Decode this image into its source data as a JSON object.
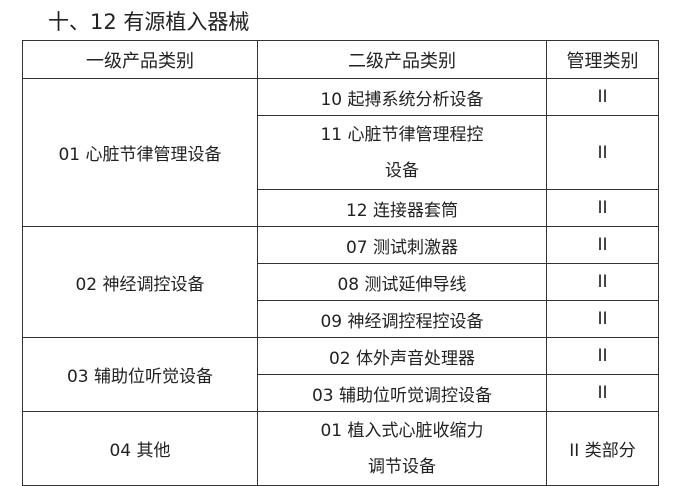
{
  "title": "十、12 有源植入器械",
  "headers": [
    "一级产品类别",
    "二级产品类别",
    "管理类别"
  ],
  "groups": [
    {
      "name": "01 心脏节律管理设备",
      "items": [
        {
          "name": "10 起搏系统分析设备",
          "class": "II"
        },
        {
          "name": "11 心脏节律管理程控设备",
          "class": "II"
        },
        {
          "name": "12 连接器套筒",
          "class": "II"
        }
      ]
    },
    {
      "name": "02 神经调控设备",
      "items": [
        {
          "name": "07 测试刺激器",
          "class": "II"
        },
        {
          "name": "08 测试延伸导线",
          "class": "II"
        },
        {
          "name": "09 神经调控程控设备",
          "class": "II"
        }
      ]
    },
    {
      "name": "03 辅助位听觉设备",
      "items": [
        {
          "name": "02 体外声音处理器",
          "class": "II"
        },
        {
          "name": "03 辅助位听觉调控设备",
          "class": "II"
        }
      ]
    },
    {
      "name": "04 其他",
      "items": [
        {
          "name": "01 植入式心脏收缩力调节设备",
          "class": "II 类部分"
        }
      ]
    }
  ]
}
